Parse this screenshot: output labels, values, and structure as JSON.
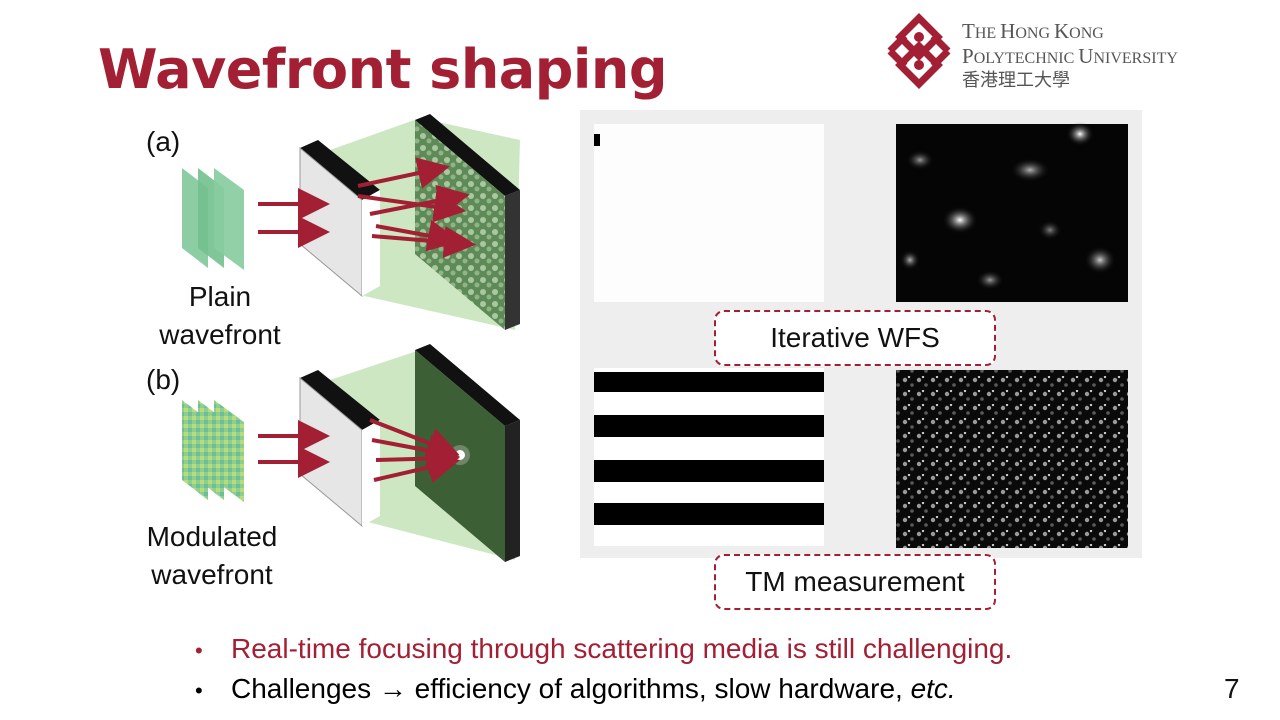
{
  "slide": {
    "title": "Wavefront shaping",
    "page_number": "7"
  },
  "university": {
    "line1_cap": "T",
    "line1_rest": "HE ",
    "line1_cap2": "H",
    "line1_rest2": "ONG ",
    "line1_cap3": "K",
    "line1_rest3": "ONG",
    "line2_cap": "P",
    "line2_rest": "OLYTECHNIC ",
    "line2_cap2": "U",
    "line2_rest2": "NIVERSITY",
    "chinese": "香港理工大學"
  },
  "figure_left": {
    "label_a": "(a)",
    "label_b": "(b)",
    "plain_line1": "Plain",
    "plain_line2": "wavefront",
    "mod_line1": "Modulated",
    "mod_line2": "wavefront"
  },
  "figure_right": {
    "caption_top": "Iterative WFS",
    "caption_bottom": "TM measurement"
  },
  "bullets": [
    {
      "text": "Real-time focusing through scattering media is still challenging.",
      "color": "#a31f34"
    },
    {
      "prefix": "Challenges → efficiency of algorithms, slow hardware, ",
      "italic": "etc."
    }
  ],
  "colors": {
    "accent": "#a31f34",
    "wave_green": "#7fc89a",
    "cone_green": "#c5e3b8"
  }
}
